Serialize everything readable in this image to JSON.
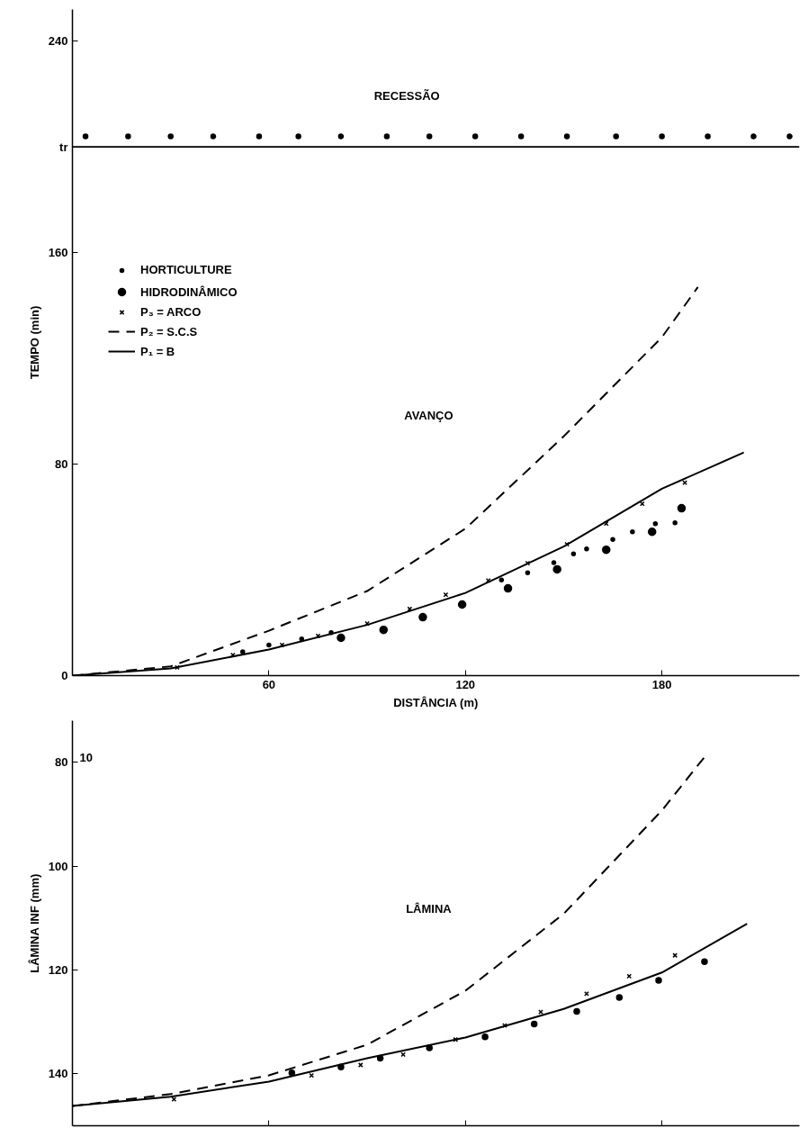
{
  "chart_data": [
    {
      "type": "scatter",
      "xlabel": "DISTÂNCIA (m)",
      "ylabel": "TEMPO (min)",
      "xlim": [
        0,
        222
      ],
      "ylim": [
        0,
        252
      ],
      "xticks": [
        60,
        120,
        180
      ],
      "yticks": [
        0,
        80,
        160,
        {
          "value": 200,
          "label": "tr"
        },
        240
      ],
      "grid": false,
      "legend": "top left",
      "ref_lines": [
        {
          "axis": "y",
          "value": 200,
          "color": "#000000",
          "line_style": "solid"
        }
      ],
      "annotations": [
        "RECESSÃO",
        "AVANÇO"
      ],
      "series": [
        {
          "name": "HORTICULTURE",
          "marker": "circle",
          "color": "#000000",
          "x": [
            52,
            60,
            70,
            79,
            131,
            139,
            147,
            153,
            157,
            165,
            171,
            178,
            184
          ],
          "values": [
            9,
            11.6,
            13.9,
            16.3,
            36.2,
            38.9,
            42.7,
            46.1,
            47.9,
            51.5,
            54.4,
            57.5,
            57.8
          ]
        },
        {
          "name": "HIDRODINÂMICO",
          "marker": "circle",
          "color": "#000000",
          "x": [
            82,
            95,
            107,
            119,
            133,
            148,
            163,
            177,
            186
          ],
          "values": [
            14.3,
            17.3,
            22.1,
            26.9,
            33,
            40.2,
            47.6,
            54.4,
            63.3
          ]
        },
        {
          "name": "P₃ = ARCO",
          "marker": "cross",
          "color": "#000000",
          "x": [
            32,
            49,
            64,
            75,
            90,
            103,
            114,
            127,
            139,
            151,
            163,
            174,
            187
          ],
          "values": [
            3.1,
            7.8,
            11.6,
            15,
            19.7,
            25.2,
            30.6,
            36,
            42.5,
            49.7,
            57.5,
            65,
            73
          ]
        },
        {
          "name": "P₂ = S.C.S",
          "type": "line",
          "line_style": "dashed",
          "color": "#000000",
          "x": [
            0,
            30,
            60,
            90,
            120,
            150,
            180,
            191
          ],
          "values": [
            0,
            3.5,
            17,
            32,
            55.6,
            90.5,
            128,
            147
          ]
        },
        {
          "name": "P₁ = B",
          "type": "line",
          "line_style": "solid",
          "color": "#000000",
          "x": [
            0,
            30,
            60,
            90,
            120,
            150,
            180,
            205
          ],
          "values": [
            0,
            2.7,
            9.9,
            19.2,
            31.3,
            48.8,
            70.7,
            84.4
          ]
        },
        {
          "marker": "circle",
          "color": "#000000",
          "x": [
            4,
            17,
            30,
            43,
            57,
            69,
            82,
            96,
            109,
            123,
            137,
            151,
            166,
            180,
            194,
            208,
            219
          ],
          "values": [
            204,
            204,
            204,
            204,
            204,
            204,
            204,
            204,
            204,
            204,
            204,
            204,
            204,
            204,
            204,
            204,
            204
          ]
        }
      ]
    },
    {
      "type": "scatter",
      "ylabel": "LÂMINA INF (mm)",
      "xlim": [
        0,
        222
      ],
      "ylim": [
        150,
        72
      ],
      "xticks": [
        60,
        120,
        180
      ],
      "yticks": [
        80,
        100,
        120,
        140
      ],
      "tick_labels": "y",
      "grid": false,
      "annotations": [
        "10",
        "LÂMINA"
      ],
      "series": [
        {
          "marker": "circle",
          "color": "#000000",
          "x": [
            67,
            82,
            94,
            109,
            126,
            141,
            154,
            167,
            179,
            193
          ],
          "values": [
            139.8,
            138.7,
            137,
            135,
            132.9,
            130.4,
            128,
            125.3,
            122,
            118.4
          ]
        },
        {
          "marker": "cross",
          "color": "#000000",
          "x": [
            31,
            73,
            88,
            101,
            117,
            132,
            143,
            157,
            170,
            184
          ],
          "values": [
            144.9,
            140.3,
            138.3,
            136.3,
            133.4,
            130.7,
            128.1,
            124.6,
            121.2,
            117.2
          ]
        },
        {
          "type": "line",
          "line_style": "dashed",
          "color": "#000000",
          "x": [
            0,
            30,
            60,
            90,
            120,
            150,
            180,
            193
          ],
          "values": [
            146.2,
            143.9,
            140.3,
            134.4,
            124,
            109.2,
            89.3,
            79
          ]
        },
        {
          "type": "line",
          "line_style": "solid",
          "color": "#000000",
          "x": [
            0,
            30,
            60,
            90,
            120,
            150,
            180,
            206
          ],
          "values": [
            146.2,
            144.4,
            141.5,
            137,
            133,
            127.5,
            120.5,
            111.1
          ]
        }
      ]
    }
  ]
}
